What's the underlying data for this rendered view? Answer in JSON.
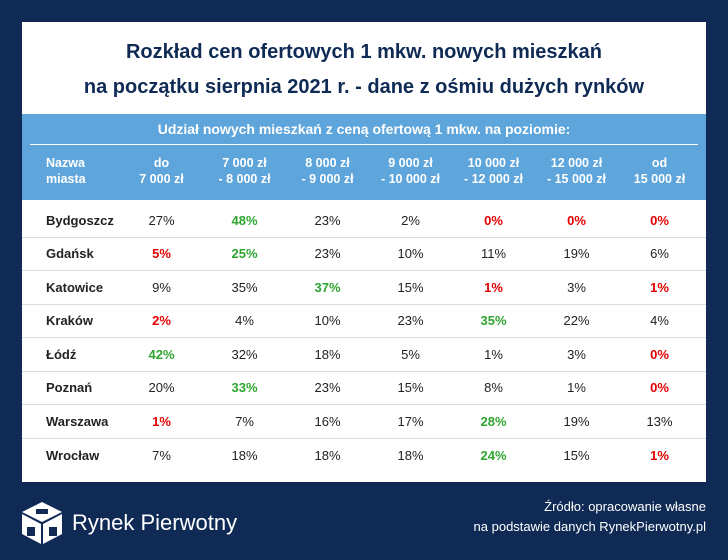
{
  "title": [
    "Rozkład cen ofertowych 1 mkw. nowych mieszkań",
    "na początku sierpnia 2021 r. - dane z ośmiu dużych rynków"
  ],
  "subtitle": "Udział nowych mieszkań z ceną ofertową 1 mkw. na poziomie:",
  "columns": [
    [
      "Nazwa",
      "miasta"
    ],
    [
      "do",
      "7 000 zł"
    ],
    [
      "7 000 zł",
      "- 8 000 zł"
    ],
    [
      "8 000 zł",
      "- 9 000 zł"
    ],
    [
      "9 000 zł",
      "- 10 000 zł"
    ],
    [
      "10 000 zł",
      "- 12 000 zł"
    ],
    [
      "12 000 zł",
      "- 15 000 zł"
    ],
    [
      "od",
      "15 000 zł"
    ]
  ],
  "rows": [
    {
      "city": "Bydgoszcz",
      "values": [
        "27%",
        "48%",
        "23%",
        "2%",
        "0%",
        "0%",
        "0%"
      ],
      "hl": [
        "",
        "g",
        "",
        "",
        "r",
        "r",
        "r"
      ]
    },
    {
      "city": "Gdańsk",
      "values": [
        "5%",
        "25%",
        "23%",
        "10%",
        "11%",
        "19%",
        "6%"
      ],
      "hl": [
        "r",
        "g",
        "",
        "",
        "",
        "",
        ""
      ]
    },
    {
      "city": "Katowice",
      "values": [
        "9%",
        "35%",
        "37%",
        "15%",
        "1%",
        "3%",
        "1%"
      ],
      "hl": [
        "",
        "",
        "g",
        "",
        "r",
        "",
        "r"
      ]
    },
    {
      "city": "Kraków",
      "values": [
        "2%",
        "4%",
        "10%",
        "23%",
        "35%",
        "22%",
        "4%"
      ],
      "hl": [
        "r",
        "",
        "",
        "",
        "g",
        "",
        ""
      ]
    },
    {
      "city": "Łódź",
      "values": [
        "42%",
        "32%",
        "18%",
        "5%",
        "1%",
        "3%",
        "0%"
      ],
      "hl": [
        "g",
        "",
        "",
        "",
        "",
        "",
        "r"
      ]
    },
    {
      "city": "Poznań",
      "values": [
        "20%",
        "33%",
        "23%",
        "15%",
        "8%",
        "1%",
        "0%"
      ],
      "hl": [
        "",
        "g",
        "",
        "",
        "",
        "",
        "r"
      ]
    },
    {
      "city": "Warszawa",
      "values": [
        "1%",
        "7%",
        "16%",
        "17%",
        "28%",
        "19%",
        "13%"
      ],
      "hl": [
        "r",
        "",
        "",
        "",
        "g",
        "",
        ""
      ]
    },
    {
      "city": "Wrocław",
      "values": [
        "7%",
        "18%",
        "18%",
        "18%",
        "24%",
        "15%",
        "1%"
      ],
      "hl": [
        "",
        "",
        "",
        "",
        "g",
        "",
        "r"
      ]
    }
  ],
  "colors": {
    "background": "#0f2b55",
    "header": "#5ea5dc",
    "highest": "#2fa52f",
    "lowest": "#e30000"
  },
  "footer": {
    "logo_text": "Rynek Pierwotny",
    "source": [
      "Źródło: opracowanie własne",
      "na podstawie danych RynekPierwotny.pl"
    ]
  }
}
